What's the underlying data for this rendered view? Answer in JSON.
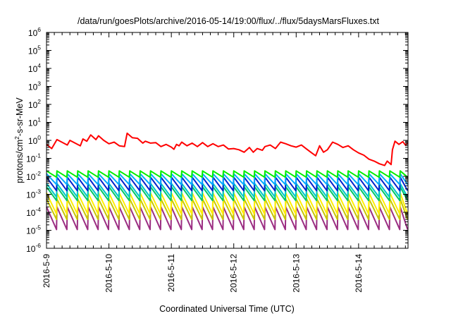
{
  "chart_data": {
    "type": "line",
    "title": "/data/run/goesPlots/archive/2016-05-14/19:00/flux/../flux/5daysMarsFluxes.txt",
    "xlabel": "Coordinated Universal Time (UTC)",
    "ylabel": {
      "prefix": "protons/cm",
      "superscript": "2",
      "suffix": "-s-sr-MeV"
    },
    "y_scale": "log",
    "ylim": [
      1e-06,
      1000000.0
    ],
    "y_ticks": [
      {
        "base": "10",
        "exp": "-6"
      },
      {
        "base": "10",
        "exp": "-5"
      },
      {
        "base": "10",
        "exp": "-4"
      },
      {
        "base": "10",
        "exp": "-3"
      },
      {
        "base": "10",
        "exp": "-2"
      },
      {
        "base": "10",
        "exp": "-1"
      },
      {
        "base": "10",
        "exp": "0"
      },
      {
        "base": "10",
        "exp": "1"
      },
      {
        "base": "10",
        "exp": "2"
      },
      {
        "base": "10",
        "exp": "3"
      },
      {
        "base": "10",
        "exp": "4"
      },
      {
        "base": "10",
        "exp": "5"
      },
      {
        "base": "10",
        "exp": "6"
      }
    ],
    "x_ticks": [
      "2016-5-9",
      "2016-5-10",
      "2016-5-11",
      "2016-5-12",
      "2016-5-13",
      "2016-5-14"
    ],
    "x_range": [
      "2016-05-09 00:00",
      "2016-05-14 19:00"
    ],
    "grid": false,
    "legend": "none",
    "sawtooth_period_hours": 4,
    "series": [
      {
        "color": "#ff0000",
        "shape": "polyline",
        "points": [
          [
            "2016-05-09 00:00",
            0.6
          ],
          [
            "2016-05-09 02:00",
            0.35
          ],
          [
            "2016-05-09 04:00",
            1.1
          ],
          [
            "2016-05-09 08:00",
            0.55
          ],
          [
            "2016-05-09 09:00",
            1.0
          ],
          [
            "2016-05-09 13:00",
            0.5
          ],
          [
            "2016-05-09 14:00",
            1.2
          ],
          [
            "2016-05-09 15:30",
            0.9
          ],
          [
            "2016-05-09 17:00",
            2.0
          ],
          [
            "2016-05-09 19:00",
            1.1
          ],
          [
            "2016-05-09 20:00",
            1.8
          ],
          [
            "2016-05-09 22:00",
            1.0
          ],
          [
            "2016-05-10 00:00",
            0.65
          ],
          [
            "2016-05-10 02:00",
            0.8
          ],
          [
            "2016-05-10 04:00",
            0.5
          ],
          [
            "2016-05-10 06:00",
            0.45
          ],
          [
            "2016-05-10 07:00",
            2.5
          ],
          [
            "2016-05-10 09:00",
            1.4
          ],
          [
            "2016-05-10 11:00",
            1.3
          ],
          [
            "2016-05-10 13:00",
            0.7
          ],
          [
            "2016-05-10 14:00",
            0.9
          ],
          [
            "2016-05-10 16:00",
            0.7
          ],
          [
            "2016-05-10 18:00",
            0.75
          ],
          [
            "2016-05-10 20:00",
            0.45
          ],
          [
            "2016-05-10 22:00",
            0.6
          ],
          [
            "2016-05-11 00:00",
            0.42
          ],
          [
            "2016-05-11 01:00",
            0.32
          ],
          [
            "2016-05-11 02:00",
            0.6
          ],
          [
            "2016-05-11 03:00",
            0.5
          ],
          [
            "2016-05-11 04:00",
            0.8
          ],
          [
            "2016-05-11 06:00",
            0.5
          ],
          [
            "2016-05-11 08:00",
            0.7
          ],
          [
            "2016-05-11 10:00",
            0.45
          ],
          [
            "2016-05-11 12:00",
            0.75
          ],
          [
            "2016-05-11 14:00",
            0.45
          ],
          [
            "2016-05-11 16:00",
            0.65
          ],
          [
            "2016-05-11 18:00",
            0.45
          ],
          [
            "2016-05-11 20:00",
            0.55
          ],
          [
            "2016-05-11 22:00",
            0.33
          ],
          [
            "2016-05-12 00:00",
            0.35
          ],
          [
            "2016-05-12 02:00",
            0.3
          ],
          [
            "2016-05-12 04:00",
            0.22
          ],
          [
            "2016-05-12 06:00",
            0.4
          ],
          [
            "2016-05-12 07:30",
            0.22
          ],
          [
            "2016-05-12 09:00",
            0.35
          ],
          [
            "2016-05-12 11:00",
            0.28
          ],
          [
            "2016-05-12 12:00",
            0.45
          ],
          [
            "2016-05-12 14:00",
            0.55
          ],
          [
            "2016-05-12 16:00",
            0.35
          ],
          [
            "2016-05-12 18:00",
            0.8
          ],
          [
            "2016-05-12 20:00",
            0.65
          ],
          [
            "2016-05-12 22:00",
            0.5
          ],
          [
            "2016-05-13 00:00",
            0.42
          ],
          [
            "2016-05-13 02:00",
            0.55
          ],
          [
            "2016-05-13 04:00",
            0.33
          ],
          [
            "2016-05-13 06:00",
            0.2
          ],
          [
            "2016-05-13 07:30",
            0.14
          ],
          [
            "2016-05-13 09:00",
            0.5
          ],
          [
            "2016-05-13 10:30",
            0.22
          ],
          [
            "2016-05-13 12:00",
            0.3
          ],
          [
            "2016-05-13 14:00",
            0.8
          ],
          [
            "2016-05-13 16:00",
            0.6
          ],
          [
            "2016-05-13 18:00",
            0.4
          ],
          [
            "2016-05-13 20:00",
            0.5
          ],
          [
            "2016-05-13 22:00",
            0.3
          ],
          [
            "2016-05-14 00:00",
            0.2
          ],
          [
            "2016-05-14 02:00",
            0.15
          ],
          [
            "2016-05-14 04:00",
            0.09
          ],
          [
            "2016-05-14 06:00",
            0.07
          ],
          [
            "2016-05-14 08:00",
            0.05
          ],
          [
            "2016-05-14 10:00",
            0.04
          ],
          [
            "2016-05-14 11:00",
            0.07
          ],
          [
            "2016-05-14 12:30",
            0.045
          ],
          [
            "2016-05-14 13:00",
            0.3
          ],
          [
            "2016-05-14 14:00",
            0.9
          ],
          [
            "2016-05-14 15:30",
            0.6
          ],
          [
            "2016-05-14 17:00",
            0.85
          ],
          [
            "2016-05-14 18:00",
            0.55
          ],
          [
            "2016-05-14 19:00",
            0.7
          ]
        ]
      },
      {
        "color": "#00ee00",
        "shape": "sawtooth",
        "high": 0.02,
        "low": 0.009
      },
      {
        "color": "#00aaff",
        "shape": "sawtooth",
        "high": 0.014,
        "low": 0.0035
      },
      {
        "color": "#0022cc",
        "shape": "sawtooth",
        "high": 0.009,
        "low": 0.0016
      },
      {
        "color": "#00c8c8",
        "shape": "sawtooth",
        "high": 0.004,
        "low": 0.0007
      },
      {
        "color": "#00c864",
        "shape": "sawtooth",
        "high": 0.0026,
        "low": 0.00045
      },
      {
        "color": "#ffee00",
        "shape": "sawtooth",
        "high": 0.0012,
        "low": 8e-05
      },
      {
        "color": "#c8c800",
        "shape": "sawtooth",
        "high": 0.00055,
        "low": 4e-05
      },
      {
        "color": "#9b2d82",
        "shape": "sawtooth",
        "high": 0.0002,
        "low": 1.1e-05
      }
    ]
  }
}
